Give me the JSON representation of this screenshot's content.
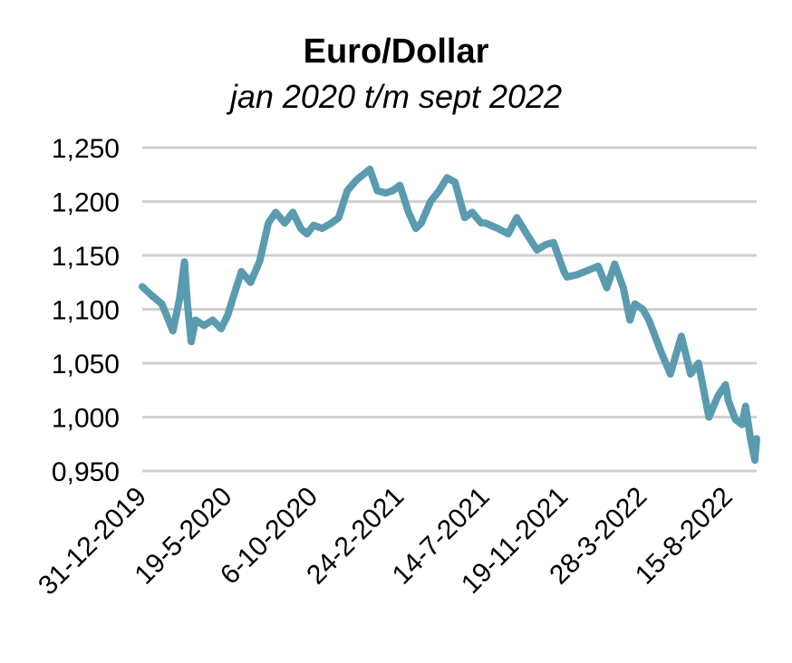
{
  "chart_data": {
    "type": "line",
    "title": "Euro/Dollar",
    "subtitle": "jan 2020 t/m sept 2022",
    "xlabel": "",
    "ylabel": "",
    "ylim": [
      0.95,
      1.25
    ],
    "y_ticks": [
      "1,250",
      "1,200",
      "1,150",
      "1,100",
      "1,050",
      "1,000",
      "0,950"
    ],
    "y_tick_values": [
      1.25,
      1.2,
      1.15,
      1.1,
      1.05,
      1.0,
      0.95
    ],
    "x_ticks": [
      "31-12-2019",
      "19-5-2020",
      "6-10-2020",
      "24-2-2021",
      "14-7-2021",
      "19-11-2021",
      "28-3-2022",
      "15-8-2022"
    ],
    "x_tick_dates": [
      "2019-12-31",
      "2020-05-19",
      "2020-10-06",
      "2021-02-24",
      "2021-07-14",
      "2021-11-19",
      "2022-03-28",
      "2022-08-15"
    ],
    "grid": true,
    "legend": "none",
    "line_color": "#5b9bb0",
    "grid_color": "#d0d0d0",
    "series": [
      {
        "x": [
          "2019-12-31",
          "2020-01-15",
          "2020-02-01",
          "2020-02-19",
          "2020-03-01",
          "2020-03-09",
          "2020-03-13",
          "2020-03-20",
          "2020-03-27",
          "2020-04-10",
          "2020-04-24",
          "2020-05-08",
          "2020-05-19",
          "2020-05-27",
          "2020-06-10",
          "2020-06-25",
          "2020-07-10",
          "2020-07-24",
          "2020-08-05",
          "2020-08-20",
          "2020-09-02",
          "2020-09-15",
          "2020-09-25",
          "2020-10-06",
          "2020-10-20",
          "2020-11-04",
          "2020-11-16",
          "2020-11-30",
          "2020-12-15",
          "2021-01-06",
          "2021-01-18",
          "2021-02-01",
          "2021-02-12",
          "2021-02-24",
          "2021-03-10",
          "2021-03-22",
          "2021-03-31",
          "2021-04-15",
          "2021-04-29",
          "2021-05-12",
          "2021-05-25",
          "2021-06-10",
          "2021-06-22",
          "2021-07-07",
          "2021-07-14",
          "2021-08-03",
          "2021-08-20",
          "2021-09-03",
          "2021-09-17",
          "2021-10-06",
          "2021-10-20",
          "2021-11-02",
          "2021-11-19",
          "2021-11-24",
          "2021-12-10",
          "2022-01-14",
          "2022-01-28",
          "2022-02-10",
          "2022-02-24",
          "2022-03-07",
          "2022-03-15",
          "2022-03-28",
          "2022-04-07",
          "2022-04-27",
          "2022-05-12",
          "2022-05-30",
          "2022-06-14",
          "2022-06-27",
          "2022-07-14",
          "2022-07-29",
          "2022-08-10",
          "2022-08-15",
          "2022-08-26",
          "2022-09-06",
          "2022-09-12",
          "2022-09-20",
          "2022-09-27",
          "2022-09-30"
        ],
        "values": [
          1.121,
          1.113,
          1.105,
          1.08,
          1.11,
          1.144,
          1.11,
          1.07,
          1.09,
          1.085,
          1.09,
          1.082,
          1.095,
          1.11,
          1.135,
          1.125,
          1.145,
          1.18,
          1.19,
          1.18,
          1.19,
          1.175,
          1.17,
          1.178,
          1.175,
          1.18,
          1.185,
          1.21,
          1.22,
          1.23,
          1.21,
          1.208,
          1.21,
          1.215,
          1.19,
          1.175,
          1.18,
          1.2,
          1.21,
          1.222,
          1.218,
          1.185,
          1.19,
          1.18,
          1.18,
          1.175,
          1.17,
          1.185,
          1.172,
          1.155,
          1.16,
          1.162,
          1.135,
          1.13,
          1.132,
          1.14,
          1.12,
          1.142,
          1.12,
          1.09,
          1.105,
          1.1,
          1.09,
          1.06,
          1.04,
          1.075,
          1.04,
          1.05,
          1.0,
          1.02,
          1.03,
          1.015,
          0.998,
          0.993,
          1.01,
          0.98,
          0.96,
          0.98
        ]
      }
    ]
  }
}
